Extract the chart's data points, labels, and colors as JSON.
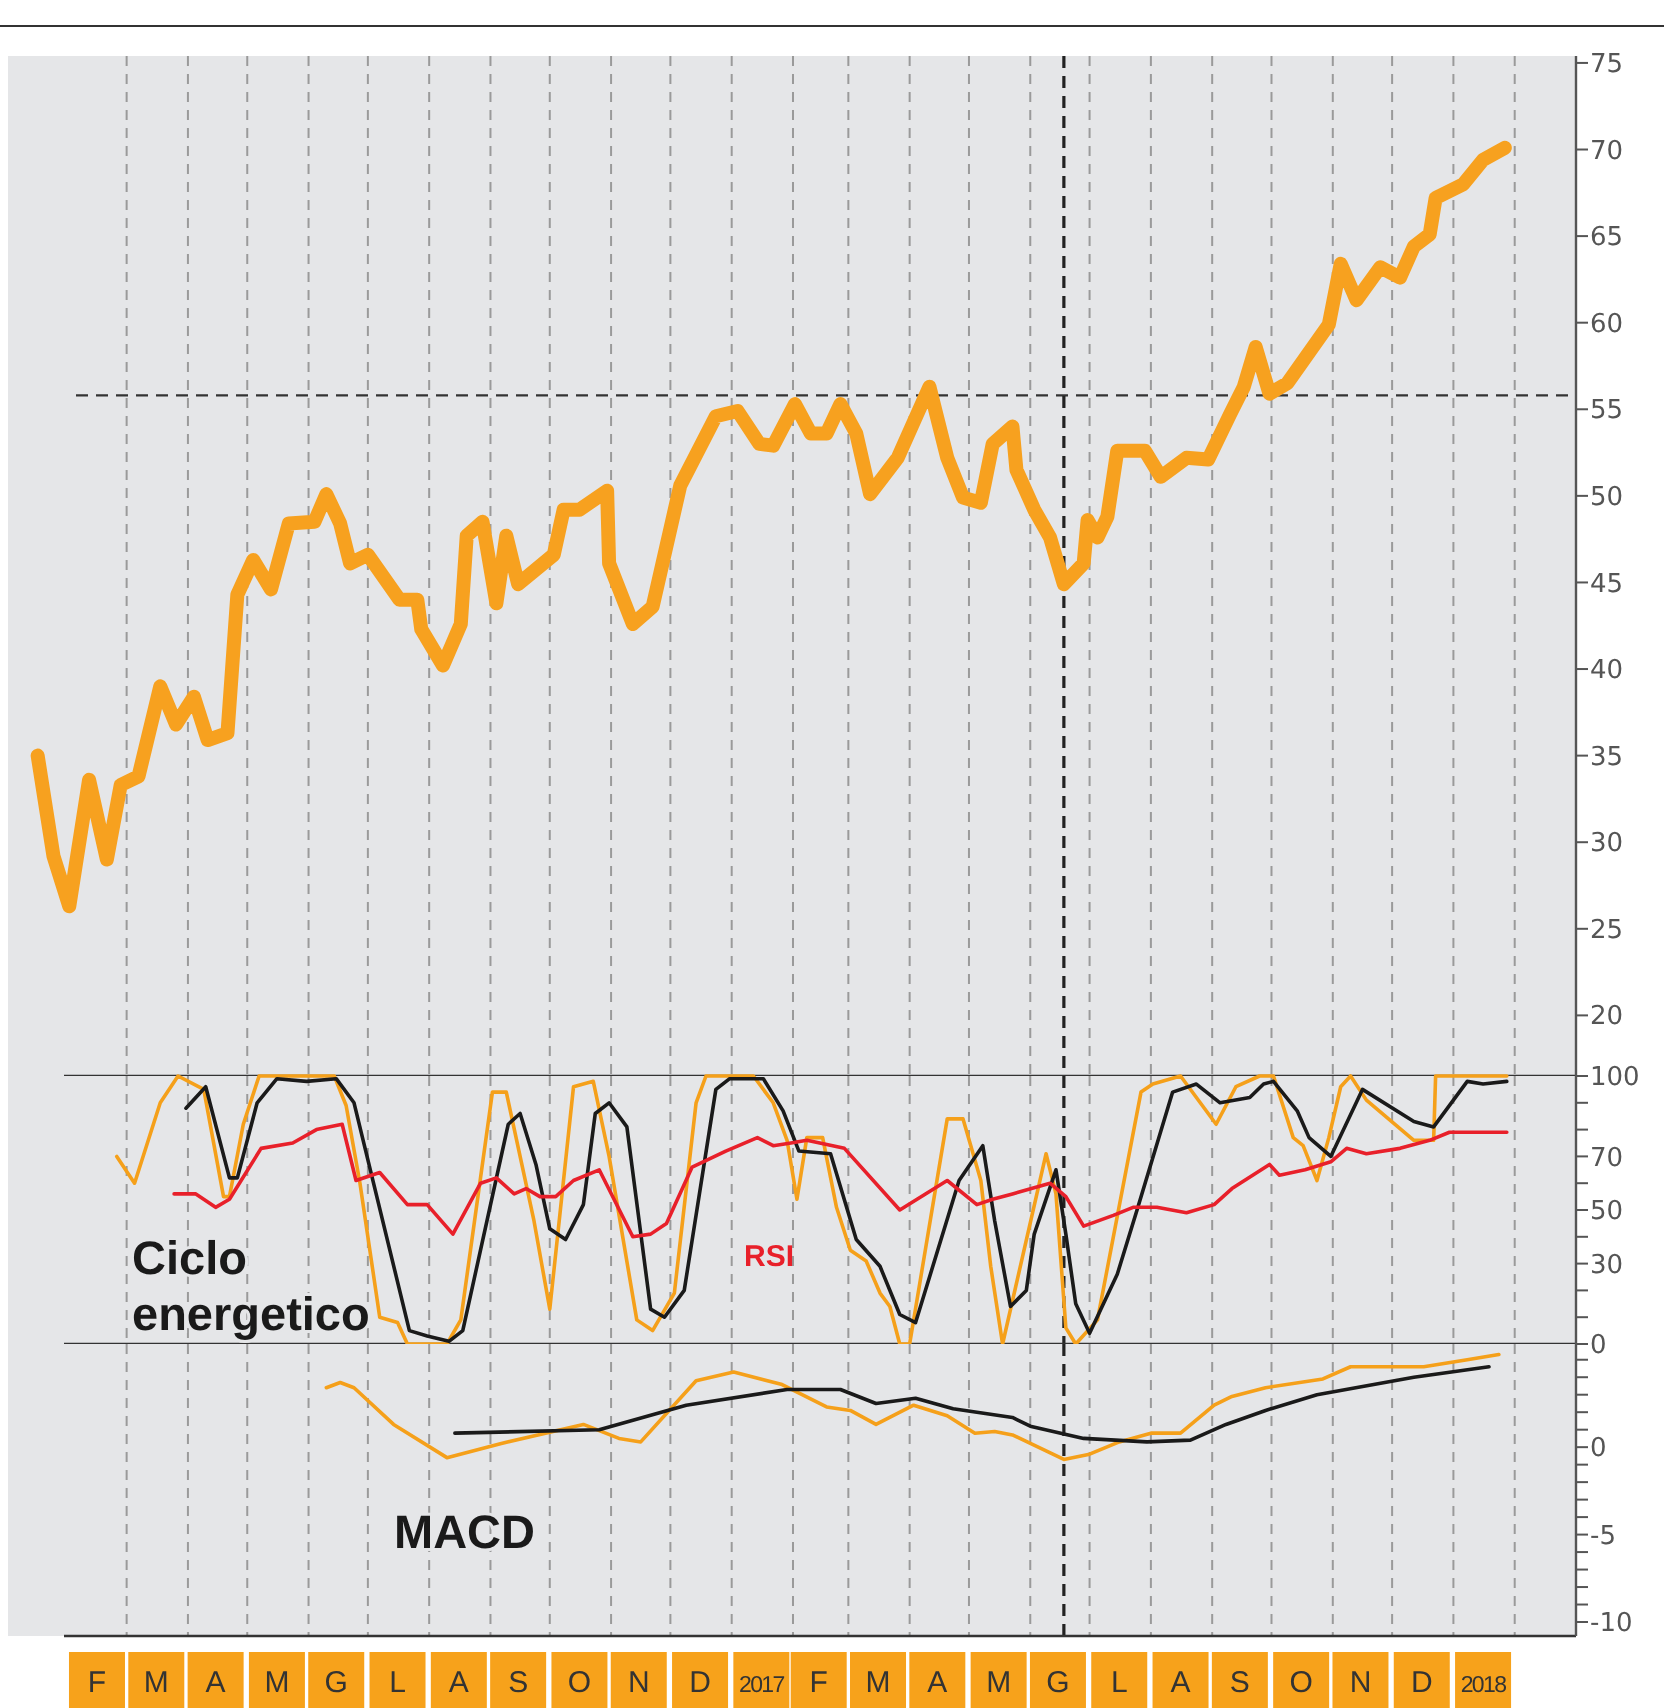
{
  "chart_data": [
    {
      "type": "line",
      "xlim": [
        "2016-01-01",
        "2018-03-04"
      ],
      "ylim": [
        16.5,
        75.4
      ],
      "yticks": [
        20,
        25,
        30,
        35,
        40,
        45,
        50,
        55,
        60,
        65,
        70,
        75
      ],
      "tick_labels": "y",
      "grid": "x",
      "ref_lines": [
        {
          "axis": "y",
          "value": 55.8,
          "color": "#333333",
          "line_style": "dashed"
        },
        {
          "axis": "x",
          "value": "2017-06-18",
          "color": "#222222",
          "line_style": "dashed"
        }
      ],
      "series": [
        {
          "color": "#f7a11f",
          "x": [
            "2016-01-16",
            "2016-01-24",
            "2016-02-01",
            "2016-02-11",
            "2016-02-20",
            "2016-02-27",
            "2016-03-07",
            "2016-03-18",
            "2016-03-26",
            "2016-04-04",
            "2016-04-11",
            "2016-04-21",
            "2016-04-26",
            "2016-05-04",
            "2016-05-13",
            "2016-05-22",
            "2016-06-04",
            "2016-06-10",
            "2016-06-17",
            "2016-06-22",
            "2016-07-01",
            "2016-07-17",
            "2016-07-26",
            "2016-07-28",
            "2016-08-08",
            "2016-08-17",
            "2016-08-20",
            "2016-08-28",
            "2016-09-04",
            "2016-09-09",
            "2016-09-15",
            "2016-10-03",
            "2016-10-08",
            "2016-10-16",
            "2016-10-30",
            "2016-10-31",
            "2016-11-12",
            "2016-11-22",
            "2016-12-06",
            "2016-12-24",
            "2017-01-04",
            "2017-01-15",
            "2017-01-22",
            "2017-02-02",
            "2017-02-10",
            "2017-02-18",
            "2017-02-25",
            "2017-03-05",
            "2017-03-12",
            "2017-03-26",
            "2017-04-11",
            "2017-04-20",
            "2017-04-28",
            "2017-05-07",
            "2017-05-13",
            "2017-05-23",
            "2017-05-25",
            "2017-06-03",
            "2017-06-11",
            "2017-06-18",
            "2017-06-28",
            "2017-06-30",
            "2017-07-05",
            "2017-07-10",
            "2017-07-15",
            "2017-07-29",
            "2017-08-06",
            "2017-08-19",
            "2017-08-30",
            "2017-09-10",
            "2017-09-17",
            "2017-09-23",
            "2017-09-30",
            "2017-10-09",
            "2017-10-30",
            "2017-11-05",
            "2017-11-13",
            "2017-11-25",
            "2017-12-05",
            "2017-12-12",
            "2017-12-20",
            "2017-12-23",
            "2018-01-06",
            "2018-01-16",
            "2018-01-27"
          ],
          "values": [
            35.0,
            29.2,
            26.3,
            33.6,
            29.0,
            33.3,
            33.8,
            39.0,
            36.8,
            38.4,
            35.9,
            36.3,
            44.3,
            46.3,
            44.6,
            48.4,
            48.5,
            50.1,
            48.4,
            46.1,
            46.6,
            44.0,
            44.0,
            42.3,
            40.2,
            42.6,
            47.7,
            48.5,
            43.8,
            47.7,
            44.9,
            46.6,
            49.2,
            49.2,
            50.3,
            46.1,
            42.6,
            43.6,
            50.6,
            54.6,
            54.9,
            53.0,
            52.9,
            55.3,
            53.6,
            53.6,
            55.3,
            53.6,
            50.1,
            52.2,
            56.3,
            52.2,
            49.9,
            49.6,
            53.0,
            54.0,
            51.5,
            49.2,
            47.6,
            44.9,
            46.1,
            48.6,
            47.6,
            48.8,
            52.6,
            52.6,
            51.1,
            52.2,
            52.1,
            54.7,
            56.3,
            58.6,
            55.9,
            56.5,
            59.9,
            63.4,
            61.3,
            63.2,
            62.6,
            64.4,
            65.1,
            67.2,
            68.0,
            69.4,
            70.1
          ]
        }
      ]
    },
    {
      "type": "line",
      "title": "Ciclo energetico",
      "xlim": [
        "2016-01-01",
        "2018-03-04"
      ],
      "ylim": [
        0,
        100
      ],
      "tick_labels": "y",
      "grid": "x",
      "yticks": [
        0,
        {
          "value": 10,
          "label": null
        },
        {
          "value": 20,
          "label": null
        },
        30,
        {
          "value": 40,
          "label": null
        },
        50,
        {
          "value": 60,
          "label": null
        },
        70,
        {
          "value": 80,
          "label": null
        },
        {
          "value": 90,
          "label": null
        },
        100
      ],
      "ref_lines": [
        {
          "axis": "x",
          "value": "2017-06-18",
          "color": "#222222",
          "line_style": "dashed"
        }
      ],
      "series": [
        {
          "color": "#f5a01a",
          "x": [
            "2016-02-25",
            "2016-03-05",
            "2016-03-18",
            "2016-03-27",
            "2016-04-09",
            "2016-04-19",
            "2016-04-22",
            "2016-04-29",
            "2016-05-07",
            "2016-06-14",
            "2016-06-20",
            "2016-06-27",
            "2016-07-07",
            "2016-07-16",
            "2016-07-21",
            "2016-08-10",
            "2016-08-17",
            "2016-09-02",
            "2016-09-09",
            "2016-09-23",
            "2016-10-01",
            "2016-10-13",
            "2016-10-23",
            "2016-10-31",
            "2016-11-14",
            "2016-11-22",
            "2016-12-03",
            "2016-12-14",
            "2016-12-19",
            "2017-01-12",
            "2017-01-22",
            "2017-01-29",
            "2017-02-03",
            "2017-02-08",
            "2017-02-11",
            "2017-02-16",
            "2017-02-23",
            "2017-03-02",
            "2017-03-10",
            "2017-03-17",
            "2017-03-22",
            "2017-03-27",
            "2017-04-01",
            "2017-04-20",
            "2017-04-28",
            "2017-05-07",
            "2017-05-12",
            "2017-05-18",
            "2017-06-09",
            "2017-06-14",
            "2017-06-19",
            "2017-06-24",
            "2017-07-05",
            "2017-07-27",
            "2017-08-02",
            "2017-08-16",
            "2017-09-03",
            "2017-09-13",
            "2017-09-25",
            "2017-10-02",
            "2017-10-12",
            "2017-10-17",
            "2017-10-24",
            "2017-10-30",
            "2017-11-05",
            "2017-11-10",
            "2017-11-18",
            "2017-12-12",
            "2017-12-22",
            "2017-12-23",
            "2018-01-28"
          ],
          "values": [
            70,
            60,
            90,
            100,
            95,
            55,
            55,
            82,
            100,
            100,
            89,
            60,
            10,
            8,
            0,
            0,
            9,
            94,
            94,
            46,
            13,
            96,
            98,
            70,
            9,
            5,
            19,
            90,
            100,
            100,
            90,
            76,
            54,
            77,
            77,
            77,
            51,
            35,
            31,
            19,
            14,
            0,
            0,
            84,
            84,
            61,
            29,
            0,
            71,
            56,
            6,
            0,
            9,
            94,
            97,
            100,
            82,
            96,
            100,
            100,
            77,
            74,
            61,
            77,
            96,
            100,
            91,
            76,
            76,
            100,
            100
          ]
        },
        {
          "color": "#1a1a1a",
          "x": [
            "2016-03-31",
            "2016-04-10",
            "2016-04-22",
            "2016-04-26",
            "2016-05-06",
            "2016-05-16",
            "2016-05-31",
            "2016-06-15",
            "2016-06-24",
            "2016-07-22",
            "2016-07-31",
            "2016-08-11",
            "2016-08-18",
            "2016-09-10",
            "2016-09-16",
            "2016-09-24",
            "2016-10-01",
            "2016-10-09",
            "2016-10-18",
            "2016-10-24",
            "2016-10-31",
            "2016-11-09",
            "2016-11-21",
            "2016-11-28",
            "2016-12-08",
            "2016-12-24",
            "2016-12-31",
            "2017-01-17",
            "2017-01-27",
            "2017-02-04",
            "2017-02-20",
            "2017-03-05",
            "2017-03-17",
            "2017-03-27",
            "2017-04-04",
            "2017-04-26",
            "2017-05-08",
            "2017-05-14",
            "2017-05-22",
            "2017-05-30",
            "2017-06-03",
            "2017-06-14",
            "2017-06-19",
            "2017-06-24",
            "2017-07-01",
            "2017-07-15",
            "2017-07-25",
            "2017-08-12",
            "2017-08-24",
            "2017-09-05",
            "2017-09-20",
            "2017-09-27",
            "2017-10-02",
            "2017-10-14",
            "2017-10-20",
            "2017-10-31",
            "2017-11-16",
            "2017-12-12",
            "2017-12-22",
            "2018-01-08",
            "2018-01-16",
            "2018-01-28"
          ],
          "values": [
            88,
            96,
            62,
            62,
            90,
            99,
            98,
            99,
            90,
            5,
            3,
            1,
            5,
            82,
            86,
            67,
            43,
            39,
            52,
            86,
            90,
            81,
            13,
            10,
            20,
            95,
            99,
            99,
            87,
            72,
            71,
            39,
            29,
            11,
            8,
            61,
            74,
            46,
            14,
            20,
            41,
            65,
            41,
            15,
            4,
            26,
            50,
            94,
            97,
            90,
            92,
            97,
            98,
            87,
            77,
            70,
            95,
            83,
            81,
            98,
            97,
            98
          ]
        },
        {
          "name": "RSI",
          "color": "#e8202a",
          "x": [
            "2016-03-25",
            "2016-04-05",
            "2016-04-15",
            "2016-04-22",
            "2016-05-08",
            "2016-05-24",
            "2016-06-05",
            "2016-06-18",
            "2016-06-25",
            "2016-07-07",
            "2016-07-21",
            "2016-07-31",
            "2016-08-13",
            "2016-08-27",
            "2016-09-04",
            "2016-09-13",
            "2016-09-19",
            "2016-09-26",
            "2016-10-04",
            "2016-10-13",
            "2016-10-26",
            "2016-11-12",
            "2016-11-21",
            "2016-11-29",
            "2016-12-12",
            "2016-12-29",
            "2017-01-14",
            "2017-01-22",
            "2017-01-31",
            "2017-02-08",
            "2017-02-27",
            "2017-03-27",
            "2017-04-20",
            "2017-05-05",
            "2017-05-13",
            "2017-05-23",
            "2017-06-11",
            "2017-06-19",
            "2017-06-28",
            "2017-07-13",
            "2017-07-23",
            "2017-08-04",
            "2017-08-19",
            "2017-09-02",
            "2017-09-11",
            "2017-09-30",
            "2017-10-05",
            "2017-10-18",
            "2017-10-31",
            "2017-11-08",
            "2017-11-18",
            "2017-12-05",
            "2017-12-20",
            "2017-12-30",
            "2018-01-28"
          ],
          "values": [
            56,
            56,
            51,
            54,
            73,
            75,
            80,
            82,
            61,
            64,
            52,
            52,
            41,
            60,
            62,
            56,
            58,
            55,
            55,
            61,
            65,
            40,
            41,
            45,
            66,
            72,
            77,
            74,
            75,
            76,
            73,
            50,
            61,
            52,
            54,
            56,
            60,
            55,
            44,
            48,
            51,
            51,
            49,
            52,
            58,
            67,
            63,
            65,
            68,
            73,
            71,
            73,
            76,
            79,
            79
          ]
        }
      ]
    },
    {
      "type": "line",
      "title": "MACD",
      "xlim": [
        "2016-01-01",
        "2018-03-04"
      ],
      "ylim": [
        -10.8,
        5.9
      ],
      "grid": "x",
      "yticks": [
        -10,
        {
          "value": -9,
          "label": null
        },
        {
          "value": -8,
          "label": null
        },
        {
          "value": -7,
          "label": null
        },
        {
          "value": -6,
          "label": null
        },
        -5,
        {
          "value": -4,
          "label": null
        },
        {
          "value": -3,
          "label": null
        },
        {
          "value": -2,
          "label": null
        },
        {
          "value": -1,
          "label": null
        },
        0,
        {
          "value": 1,
          "label": null
        },
        {
          "value": 2,
          "label": null
        },
        {
          "value": 3,
          "label": null
        },
        {
          "value": 4,
          "label": null
        },
        {
          "value": 5,
          "label": null
        }
      ],
      "xticks": [
        {
          "value": "2016-02-15",
          "label": "F"
        },
        {
          "value": "2016-03-01",
          "label": null
        },
        {
          "value": "2016-03-16",
          "label": "M"
        },
        {
          "value": "2016-04-01",
          "label": null
        },
        {
          "value": "2016-04-15",
          "label": "A"
        },
        {
          "value": "2016-05-01",
          "label": null
        },
        {
          "value": "2016-05-16",
          "label": "M"
        },
        {
          "value": "2016-06-01",
          "label": null
        },
        {
          "value": "2016-06-15",
          "label": "G"
        },
        {
          "value": "2016-07-01",
          "label": null
        },
        {
          "value": "2016-07-16",
          "label": "L"
        },
        {
          "value": "2016-08-01",
          "label": null
        },
        {
          "value": "2016-08-16",
          "label": "A"
        },
        {
          "value": "2016-09-01",
          "label": null
        },
        {
          "value": "2016-09-15",
          "label": "S"
        },
        {
          "value": "2016-10-01",
          "label": null
        },
        {
          "value": "2016-10-16",
          "label": "O"
        },
        {
          "value": "2016-11-01",
          "label": null
        },
        {
          "value": "2016-11-15",
          "label": "N"
        },
        {
          "value": "2016-12-01",
          "label": null
        },
        {
          "value": "2016-12-16",
          "label": "D"
        },
        {
          "value": "2017-01-01",
          "label": null
        },
        {
          "value": "2017-01-16",
          "label": "2017"
        },
        {
          "value": "2017-02-01",
          "label": null
        },
        {
          "value": "2017-02-14",
          "label": "F"
        },
        {
          "value": "2017-03-01",
          "label": null
        },
        {
          "value": "2017-03-16",
          "label": "M"
        },
        {
          "value": "2017-04-01",
          "label": null
        },
        {
          "value": "2017-04-15",
          "label": "A"
        },
        {
          "value": "2017-05-01",
          "label": null
        },
        {
          "value": "2017-05-16",
          "label": "M"
        },
        {
          "value": "2017-06-01",
          "label": null
        },
        {
          "value": "2017-06-15",
          "label": "G"
        },
        {
          "value": "2017-07-01",
          "label": null
        },
        {
          "value": "2017-07-16",
          "label": "L"
        },
        {
          "value": "2017-08-01",
          "label": null
        },
        {
          "value": "2017-08-16",
          "label": "A"
        },
        {
          "value": "2017-09-01",
          "label": null
        },
        {
          "value": "2017-09-15",
          "label": "S"
        },
        {
          "value": "2017-10-01",
          "label": null
        },
        {
          "value": "2017-10-16",
          "label": "O"
        },
        {
          "value": "2017-11-01",
          "label": null
        },
        {
          "value": "2017-11-15",
          "label": "N"
        },
        {
          "value": "2017-12-01",
          "label": null
        },
        {
          "value": "2017-12-16",
          "label": "D"
        },
        {
          "value": "2018-01-01",
          "label": null
        },
        {
          "value": "2018-01-16",
          "label": "2018"
        },
        {
          "value": "2018-02-01",
          "label": null
        }
      ],
      "ref_lines": [
        {
          "axis": "x",
          "value": "2017-06-18",
          "color": "#222222",
          "line_style": "dashed"
        }
      ],
      "series": [
        {
          "color": "#f5a01a",
          "x": [
            "2016-06-10",
            "2016-06-17",
            "2016-06-24",
            "2016-07-14",
            "2016-08-10",
            "2016-09-06",
            "2016-10-18",
            "2016-11-05",
            "2016-11-16",
            "2016-12-14",
            "2017-01-02",
            "2017-01-26",
            "2017-02-18",
            "2017-03-02",
            "2017-03-15",
            "2017-04-03",
            "2017-04-20",
            "2017-05-04",
            "2017-05-14",
            "2017-05-23",
            "2017-06-18",
            "2017-07-01",
            "2017-07-16",
            "2017-08-01",
            "2017-08-16",
            "2017-09-02",
            "2017-09-11",
            "2017-09-28",
            "2017-10-27",
            "2017-11-10",
            "2017-12-17",
            "2018-01-08",
            "2018-01-24"
          ],
          "values": [
            3.4,
            3.7,
            3.4,
            1.3,
            -0.6,
            0.2,
            1.3,
            0.5,
            0.3,
            3.8,
            4.3,
            3.6,
            2.3,
            2.1,
            1.3,
            2.4,
            1.8,
            0.8,
            0.9,
            0.7,
            -0.7,
            -0.4,
            0.3,
            0.8,
            0.8,
            2.4,
            2.9,
            3.4,
            3.9,
            4.6,
            4.6,
            5.0,
            5.3
          ]
        },
        {
          "color": "#1a1a1a",
          "x": [
            "2016-08-14",
            "2016-10-26",
            "2016-12-09",
            "2017-01-29",
            "2017-02-25",
            "2017-03-15",
            "2017-04-04",
            "2017-04-23",
            "2017-05-23",
            "2017-06-01",
            "2017-06-28",
            "2017-07-30",
            "2017-08-21",
            "2017-09-08",
            "2017-09-28",
            "2017-10-24",
            "2017-12-12",
            "2018-01-19"
          ],
          "values": [
            0.8,
            1.0,
            2.4,
            3.3,
            3.3,
            2.5,
            2.8,
            2.2,
            1.7,
            1.2,
            0.5,
            0.3,
            0.4,
            1.3,
            2.1,
            3.0,
            4.0,
            4.6
          ]
        }
      ]
    }
  ]
}
